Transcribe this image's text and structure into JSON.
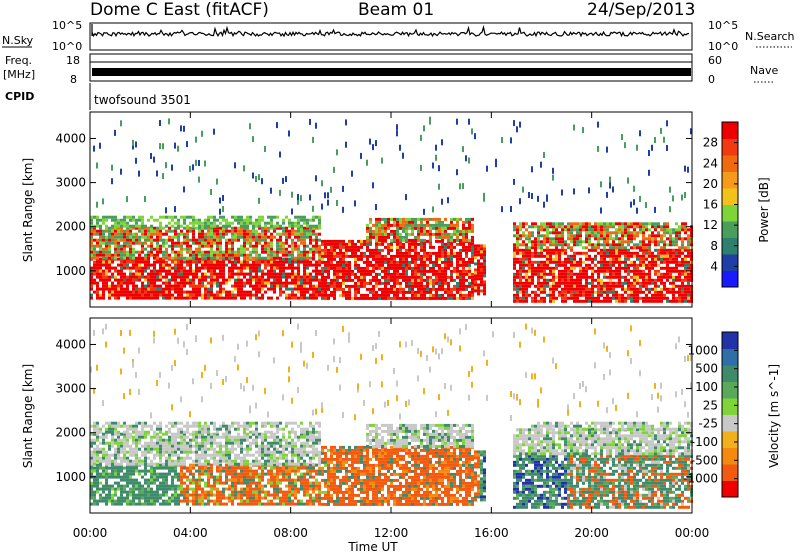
{
  "header": {
    "radar": "Dome C East (fitACF)",
    "beam": "Beam 01",
    "date": "24/Sep/2013"
  },
  "status_panels": {
    "nsky_label": "N.Sky",
    "nsearch_label": "N.Search",
    "freq_label_line1": "Freq.",
    "freq_label_line2": "[MHz]",
    "nave_label": "Nave",
    "cpid_label": "CPID",
    "cpid_value": "twofsound 3501",
    "noise_ticks_left": [
      "10^5",
      "10^0"
    ],
    "noise_ticks_right": [
      "10^5",
      "10^0"
    ],
    "freq_ticks": [
      "18",
      "8"
    ],
    "nave_ticks": [
      "60",
      "0"
    ]
  },
  "chart_data": [
    {
      "type": "heatmap",
      "name": "power",
      "ylabel": "Slant Range [km]",
      "xlabel": "Time UT",
      "x_ticks": [
        "00:00",
        "04:00",
        "08:00",
        "12:00",
        "16:00",
        "20:00",
        "00:00"
      ],
      "y_ticks": [
        "1000",
        "2000",
        "3000",
        "4000"
      ],
      "ylim": [
        180,
        4600
      ],
      "colorbar": {
        "label": "Power [dB]",
        "ticks": [
          "4",
          "8",
          "12",
          "16",
          "20",
          "24",
          "28"
        ],
        "colors": [
          "#1a1aff",
          "#1f3ea6",
          "#2e7f6e",
          "#4a9e5c",
          "#7fd43a",
          "#f2c21a",
          "#f59a1a",
          "#f06a10",
          "#f23a10",
          "#ee0000"
        ]
      }
    },
    {
      "type": "heatmap",
      "name": "velocity",
      "ylabel": "Slant Range [km]",
      "xlabel": "Time UT",
      "x_ticks": [
        "00:00",
        "04:00",
        "08:00",
        "12:00",
        "16:00",
        "20:00",
        "00:00"
      ],
      "y_ticks": [
        "1000",
        "2000",
        "3000",
        "4000"
      ],
      "ylim": [
        180,
        4600
      ],
      "colorbar": {
        "label": "Velocity [m s^-1]",
        "ticks": [
          "1000",
          "500",
          "100",
          "25",
          "-25",
          "-100",
          "-500",
          "-1000"
        ],
        "colors": [
          "#2233aa",
          "#2f6fa8",
          "#3f8a6a",
          "#5aa85a",
          "#7fd43a",
          "#c8c8c8",
          "#f2b01a",
          "#f58a10",
          "#f25a10",
          "#ee0000"
        ]
      }
    }
  ]
}
